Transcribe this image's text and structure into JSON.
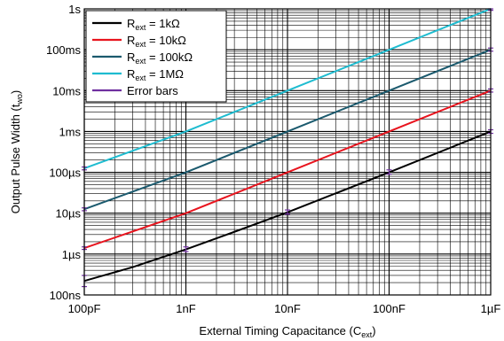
{
  "chart_data": {
    "type": "line",
    "x_scale": "log",
    "y_scale": "log",
    "xlim": [
      1e-10,
      1e-06
    ],
    "ylim": [
      1e-07,
      1
    ],
    "grid": true,
    "legend_position": "top-left",
    "xlabel": {
      "main": "External Timing Capacitance (C",
      "sub": "ext",
      "end": ")"
    },
    "ylabel": {
      "main": "Output Pulse Width (t",
      "sub": "wo",
      "end": ")"
    },
    "x_ticks": [
      {
        "value": 1e-10,
        "label": "100pF"
      },
      {
        "value": 1e-09,
        "label": "1nF"
      },
      {
        "value": 1e-08,
        "label": "10nF"
      },
      {
        "value": 1e-07,
        "label": "100nF"
      },
      {
        "value": 1e-06,
        "label": "1µF"
      }
    ],
    "y_ticks": [
      {
        "value": 1e-07,
        "label": "100ns"
      },
      {
        "value": 1e-06,
        "label": "1µs"
      },
      {
        "value": 1e-05,
        "label": "10µs"
      },
      {
        "value": 0.0001,
        "label": "100µs"
      },
      {
        "value": 0.001,
        "label": "1ms"
      },
      {
        "value": 0.01,
        "label": "10ms"
      },
      {
        "value": 0.1,
        "label": "100ms"
      },
      {
        "value": 1,
        "label": "1s"
      }
    ],
    "series": [
      {
        "name": "R = 1kΩ",
        "legend": {
          "pre": "R",
          "sub": "ext",
          "post": " = 1kΩ"
        },
        "color": "#000000",
        "x": [
          1e-10,
          3e-10,
          1e-09,
          3e-09,
          1e-08,
          1e-07,
          1e-06
        ],
        "y": [
          2.2e-07,
          4.8e-07,
          1.3e-06,
          3.5e-06,
          1.05e-05,
          0.0001,
          0.001
        ]
      },
      {
        "name": "R = 10kΩ",
        "legend": {
          "pre": "R",
          "sub": "ext",
          "post": " = 10kΩ"
        },
        "color": "#e8141e",
        "x": [
          1e-10,
          1e-09,
          1e-08,
          1e-07,
          1e-06
        ],
        "y": [
          1.4e-06,
          1e-05,
          0.0001,
          0.001,
          0.01
        ]
      },
      {
        "name": "R = 100kΩ",
        "legend": {
          "pre": "R",
          "sub": "ext",
          "post": " = 100kΩ"
        },
        "color": "#1b5a6e",
        "x": [
          1e-10,
          1e-09,
          1e-08,
          1e-07,
          1e-06
        ],
        "y": [
          1.25e-05,
          0.0001,
          0.001,
          0.01,
          0.1
        ]
      },
      {
        "name": "R = 1MΩ",
        "legend": {
          "pre": "R",
          "sub": "ext",
          "post": " = 1MΩ"
        },
        "color": "#1ebcd0",
        "x": [
          1e-10,
          1e-09,
          1e-08,
          1e-07,
          1e-06
        ],
        "y": [
          0.000125,
          0.001,
          0.01,
          0.1,
          1.0
        ]
      }
    ],
    "error_bars": {
      "name": "Error bars",
      "legend": {
        "pre": "Error bars",
        "sub": "",
        "post": ""
      },
      "color": "#7030a0",
      "points": [
        {
          "x": 1e-10,
          "y": 2.2e-07,
          "low": 1.6e-07,
          "high": 3e-07
        },
        {
          "x": 1e-09,
          "y": 1.3e-06,
          "low": 1.15e-06,
          "high": 1.5e-06
        },
        {
          "x": 1e-08,
          "y": 1.05e-05,
          "low": 9.5e-06,
          "high": 1.2e-05
        },
        {
          "x": 1e-07,
          "y": 0.0001,
          "low": 9e-05,
          "high": 0.000115
        },
        {
          "x": 1e-06,
          "y": 0.001,
          "low": 0.0009,
          "high": 0.0011
        },
        {
          "x": 1e-10,
          "y": 1.4e-06,
          "low": 1.3e-06,
          "high": 1.5e-06
        },
        {
          "x": 1e-06,
          "y": 0.01,
          "low": 0.0092,
          "high": 0.011
        },
        {
          "x": 1e-10,
          "y": 1.25e-05,
          "low": 1.15e-05,
          "high": 1.35e-05
        },
        {
          "x": 1e-06,
          "y": 0.1,
          "low": 0.092,
          "high": 0.11
        },
        {
          "x": 1e-10,
          "y": 0.000125,
          "low": 0.000115,
          "high": 0.000135
        },
        {
          "x": 1e-06,
          "y": 1.0,
          "low": 0.92,
          "high": 1.0
        }
      ]
    }
  }
}
